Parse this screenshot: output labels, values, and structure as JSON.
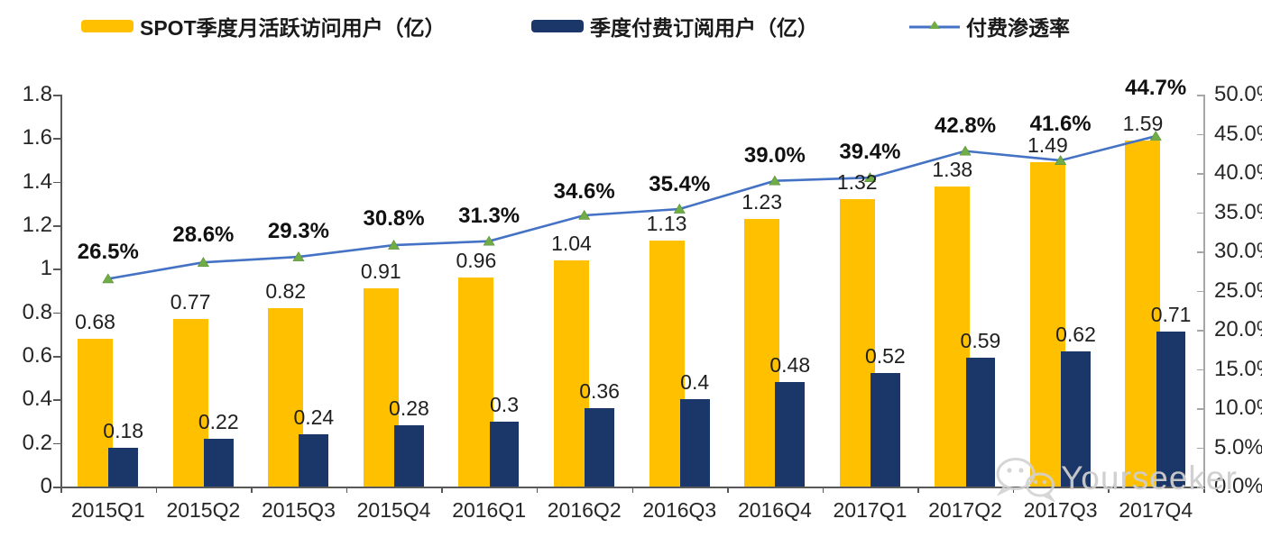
{
  "legend": {
    "items": [
      {
        "label": "SPOT季度月活跃访问用户（亿）",
        "swatch": "bar",
        "color": "#FFC000"
      },
      {
        "label": "季度付费订阅用户（亿）",
        "swatch": "bar",
        "color": "#1B3668"
      },
      {
        "label": "付费渗透率",
        "swatch": "line-marker",
        "line_color": "#4472C4",
        "marker_color": "#70AD47"
      }
    ]
  },
  "watermark": {
    "text": "Yourseeker",
    "icon": "wechat-icon"
  },
  "chart_data": {
    "type": "bar+line combo",
    "categories": [
      "2015Q1",
      "2015Q2",
      "2015Q3",
      "2015Q4",
      "2016Q1",
      "2016Q2",
      "2016Q3",
      "2016Q4",
      "2017Q1",
      "2017Q2",
      "2017Q3",
      "2017Q4"
    ],
    "series": [
      {
        "name": "SPOT季度月活跃访问用户（亿）",
        "type": "bar",
        "axis": "left",
        "color": "#FFC000",
        "values": [
          0.68,
          0.77,
          0.82,
          0.91,
          0.96,
          1.04,
          1.13,
          1.23,
          1.32,
          1.38,
          1.49,
          1.59
        ],
        "labels": [
          "0.68",
          "0.77",
          "0.82",
          "0.91",
          "0.96",
          "1.04",
          "1.13",
          "1.23",
          "1.32",
          "1.38",
          "1.49",
          "1.59"
        ]
      },
      {
        "name": "季度付费订阅用户（亿）",
        "type": "bar",
        "axis": "left",
        "color": "#1B3668",
        "values": [
          0.18,
          0.22,
          0.24,
          0.28,
          0.3,
          0.36,
          0.4,
          0.48,
          0.52,
          0.59,
          0.62,
          0.71
        ],
        "labels": [
          "0.18",
          "0.22",
          "0.24",
          "0.28",
          "0.3",
          "0.36",
          "0.4",
          "0.48",
          "0.52",
          "0.59",
          "0.62",
          "0.71"
        ]
      },
      {
        "name": "付费渗透率",
        "type": "line",
        "axis": "right",
        "color": "#4472C4",
        "marker": "triangle",
        "marker_color": "#70AD47",
        "values": [
          26.5,
          28.6,
          29.3,
          30.8,
          31.3,
          34.6,
          35.4,
          39.0,
          39.4,
          42.8,
          41.6,
          44.7
        ],
        "labels": [
          "26.5%",
          "28.6%",
          "29.3%",
          "30.8%",
          "31.3%",
          "34.6%",
          "35.4%",
          "39.0%",
          "39.4%",
          "42.8%",
          "41.6%",
          "44.7%"
        ]
      }
    ],
    "left_axis": {
      "min": 0,
      "max": 1.8,
      "step": 0.2,
      "ticks": [
        "1.8",
        "1.6",
        "1.4",
        "1.2",
        "1",
        "0.8",
        "0.6",
        "0.4",
        "0.2",
        "0"
      ]
    },
    "right_axis": {
      "min": 0,
      "max": 50,
      "step": 5,
      "ticks": [
        "50.0%",
        "45.0%",
        "40.0%",
        "35.0%",
        "30.0%",
        "25.0%",
        "20.0%",
        "15.0%",
        "10.0%",
        "5.0%",
        "0.0%"
      ]
    },
    "grid": false,
    "legend_position": "top",
    "pct_label_dy": [
      -31,
      -32,
      -30,
      -31,
      -30,
      -28,
      -29,
      -30,
      -30,
      -30,
      -42,
      -55
    ],
    "colors": {
      "axis_dark": "#595959",
      "axis_gray": "#a6a6a6",
      "text": "#262626"
    }
  }
}
